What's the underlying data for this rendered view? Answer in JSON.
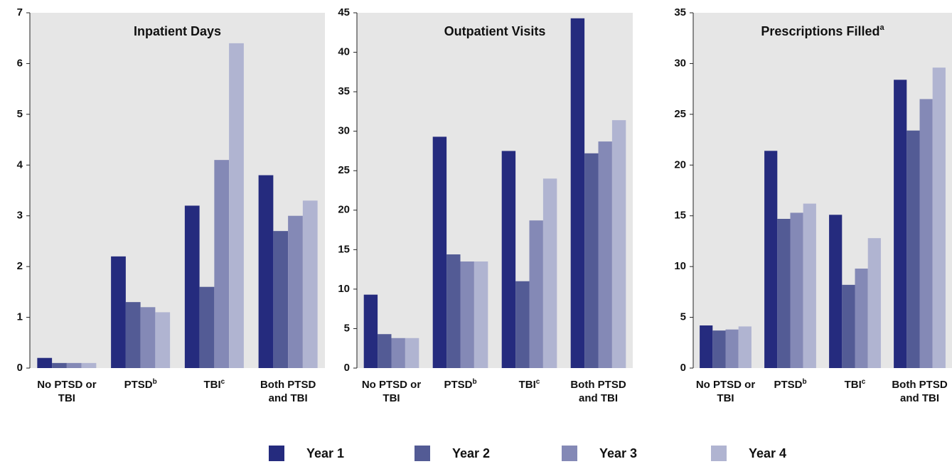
{
  "chart_data": [
    {
      "type": "bar",
      "title": "Inpatient Days",
      "categories": [
        "No PTSD or TBI",
        "PTSD",
        "TBI",
        "Both PTSD and TBI"
      ],
      "category_notes": [
        null,
        "b",
        "c",
        null
      ],
      "ylim": [
        0,
        7
      ],
      "yticks": [
        0,
        1,
        2,
        3,
        4,
        5,
        6,
        7
      ],
      "series": [
        {
          "name": "Year 1",
          "color": "#252b7e",
          "values": [
            0.2,
            2.2,
            3.2,
            3.8
          ]
        },
        {
          "name": "Year 2",
          "color": "#535b95",
          "values": [
            0.1,
            1.3,
            1.6,
            2.7
          ]
        },
        {
          "name": "Year 3",
          "color": "#8489b6",
          "values": [
            0.1,
            1.2,
            4.1,
            3.0
          ]
        },
        {
          "name": "Year 4",
          "color": "#b0b4d1",
          "values": [
            0.1,
            1.1,
            6.4,
            3.3
          ]
        }
      ]
    },
    {
      "type": "bar",
      "title": "Outpatient Visits",
      "categories": [
        "No PTSD or TBI",
        "PTSD",
        "TBI",
        "Both PTSD and TBI"
      ],
      "category_notes": [
        null,
        "b",
        "c",
        null
      ],
      "ylim": [
        0,
        45
      ],
      "yticks": [
        0,
        5,
        10,
        15,
        20,
        25,
        30,
        35,
        40,
        45
      ],
      "series": [
        {
          "values": [
            9.3,
            29.3,
            27.5,
            44.3
          ]
        },
        {
          "values": [
            4.3,
            14.4,
            11.0,
            27.2
          ]
        },
        {
          "values": [
            3.8,
            13.5,
            18.7,
            28.7
          ]
        },
        {
          "values": [
            3.8,
            13.5,
            24.0,
            31.4
          ]
        }
      ]
    },
    {
      "type": "bar",
      "title": "Prescriptions Filled",
      "title_note": "a",
      "categories": [
        "No PTSD or TBI",
        "PTSD",
        "TBI",
        "Both PTSD and TBI"
      ],
      "category_notes": [
        null,
        "b",
        "c",
        null
      ],
      "ylim": [
        0,
        35
      ],
      "yticks": [
        0,
        5,
        10,
        15,
        20,
        25,
        30,
        35
      ],
      "series": [
        {
          "values": [
            4.2,
            21.4,
            15.1,
            28.4
          ]
        },
        {
          "values": [
            3.7,
            14.7,
            8.2,
            23.4
          ]
        },
        {
          "values": [
            3.8,
            15.3,
            9.8,
            26.5
          ]
        },
        {
          "values": [
            4.1,
            16.2,
            12.8,
            29.6
          ]
        }
      ]
    }
  ]
}
